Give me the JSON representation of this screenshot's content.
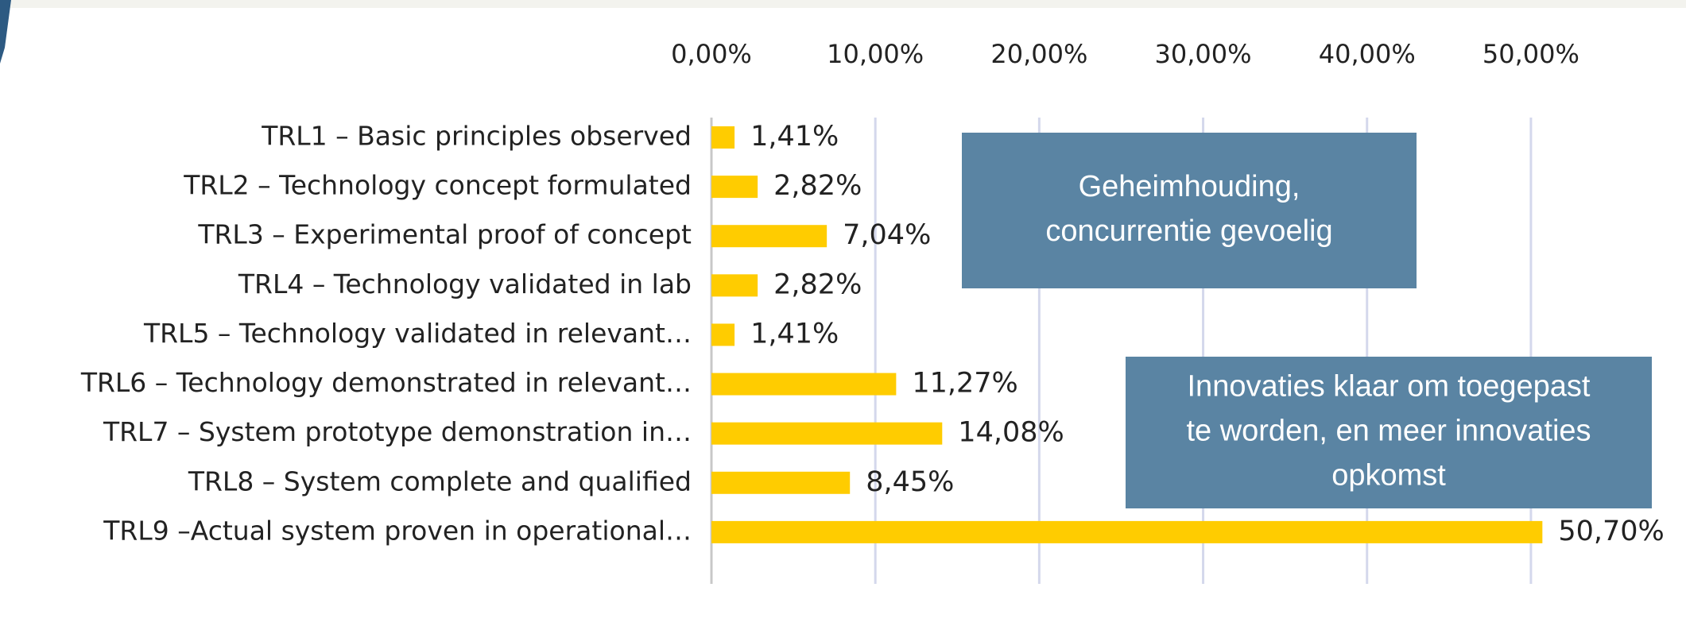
{
  "chart_data": {
    "type": "barh",
    "categories": [
      "TRL1 – Basic principles observed",
      "TRL2 – Technology concept formulated",
      "TRL3 – Experimental proof of concept",
      "TRL4 – Technology validated in lab",
      "TRL5 – Technology validated in relevant…",
      "TRL6 – Technology demonstrated in relevant…",
      "TRL7 – System prototype demonstration in…",
      "TRL8 – System complete and qualified",
      "TRL9 –Actual system proven in operational…"
    ],
    "values": [
      1.41,
      2.82,
      7.04,
      2.82,
      1.41,
      11.27,
      14.08,
      8.45,
      50.7
    ],
    "value_labels": [
      "1,41%",
      "2,82%",
      "7,04%",
      "2,82%",
      "1,41%",
      "11,27%",
      "14,08%",
      "8,45%",
      "50,70%"
    ],
    "color": "#ffcc00",
    "xlim": [
      0,
      55
    ],
    "xticks": [
      {
        "value": 0,
        "label": "0,00%"
      },
      {
        "value": 10,
        "label": "10,00%"
      },
      {
        "value": 20,
        "label": "20,00%"
      },
      {
        "value": 30,
        "label": "30,00%"
      },
      {
        "value": 40,
        "label": "40,00%"
      },
      {
        "value": 50,
        "label": "50,00%"
      }
    ],
    "grid": true,
    "annotations": [
      {
        "lines": [
          "Geheimhouding,",
          "concurrentie gevoelig"
        ],
        "color": "#5a84a3"
      },
      {
        "lines": [
          "Innovaties klaar om toegepast",
          "te worden, en meer innovaties",
          "opkomst"
        ],
        "color": "#5a84a3"
      }
    ]
  }
}
